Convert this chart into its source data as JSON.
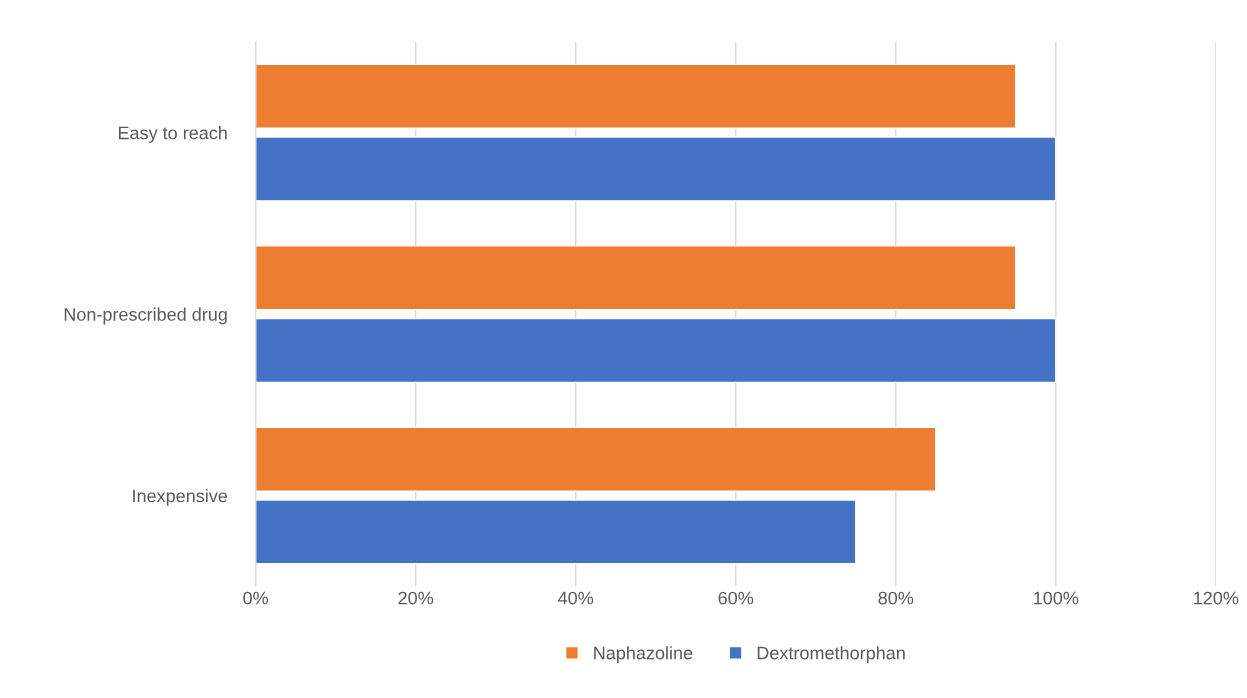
{
  "chart_data": {
    "type": "bar",
    "orientation": "horizontal",
    "categories": [
      "Easy to reach",
      "Non-prescribed drug",
      "Inexpensive"
    ],
    "series": [
      {
        "name": "Naphazoline",
        "color": "#ed7d31",
        "values": [
          95,
          95,
          85
        ]
      },
      {
        "name": "Dextromethorphan",
        "color": "#4472c4",
        "values": [
          100,
          100,
          75
        ]
      }
    ],
    "xlim": [
      0,
      120
    ],
    "xticks": [
      {
        "value": 0,
        "label": "0%"
      },
      {
        "value": 20,
        "label": "20%"
      },
      {
        "value": 40,
        "label": "40%"
      },
      {
        "value": 60,
        "label": "60%"
      },
      {
        "value": 80,
        "label": "80%"
      },
      {
        "value": 100,
        "label": "100%"
      },
      {
        "value": 120,
        "label": "120%"
      }
    ],
    "grid": "x",
    "legend": "bottom"
  }
}
